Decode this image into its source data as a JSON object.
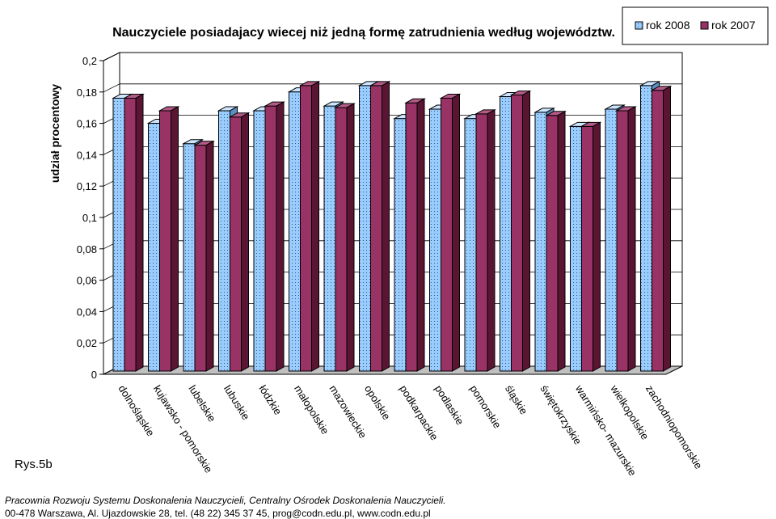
{
  "chart_data": {
    "type": "bar",
    "title": "Nauczyciele posiadajacy wiecej niż jedną formę zatrudnienia według województw.",
    "xlabel": "",
    "ylabel": "udział procentowy",
    "ylim": [
      0,
      0.2
    ],
    "yticks": [
      "0",
      "0,02",
      "0,04",
      "0,06",
      "0,08",
      "0,1",
      "0,12",
      "0,14",
      "0,16",
      "0,18",
      "0,2"
    ],
    "grid": true,
    "legend": "top-right",
    "categories": [
      "dolnośląskie",
      "kujawsko - pomorskie",
      "lubelskie",
      "lubuskie",
      "łódzkie",
      "małopolskie",
      "mazowieckie",
      "opolskie",
      "podkarpackie",
      "podlaskie",
      "pomorskie",
      "śląskie",
      "świętokrzyskie",
      "warmińsko- mazurskie",
      "wielkopolskie",
      "zachodniopomorskie"
    ],
    "series": [
      {
        "name": "rok 2008",
        "color": "#99ccff",
        "values": [
          0.174,
          0.158,
          0.145,
          0.166,
          0.166,
          0.178,
          0.169,
          0.182,
          0.161,
          0.167,
          0.161,
          0.175,
          0.165,
          0.156,
          0.167,
          0.182
        ]
      },
      {
        "name": "rok 2007",
        "color": "#993366",
        "values": [
          0.174,
          0.166,
          0.144,
          0.162,
          0.169,
          0.182,
          0.168,
          0.182,
          0.171,
          0.174,
          0.164,
          0.176,
          0.163,
          0.156,
          0.166,
          0.179
        ]
      }
    ]
  },
  "figure_label": "Rys.5b",
  "footer": {
    "line1": "Pracownia Rozwoju Systemu Doskonalenia Nauczycieli, Centralny Ośrodek Doskonalenia Nauczycieli.",
    "line2": "00-478  Warszawa,  Al. Ujazdowskie 28,  tel. (48 22) 345 37 45,  prog@codn.edu.pl,  www.codn.edu.pl"
  }
}
